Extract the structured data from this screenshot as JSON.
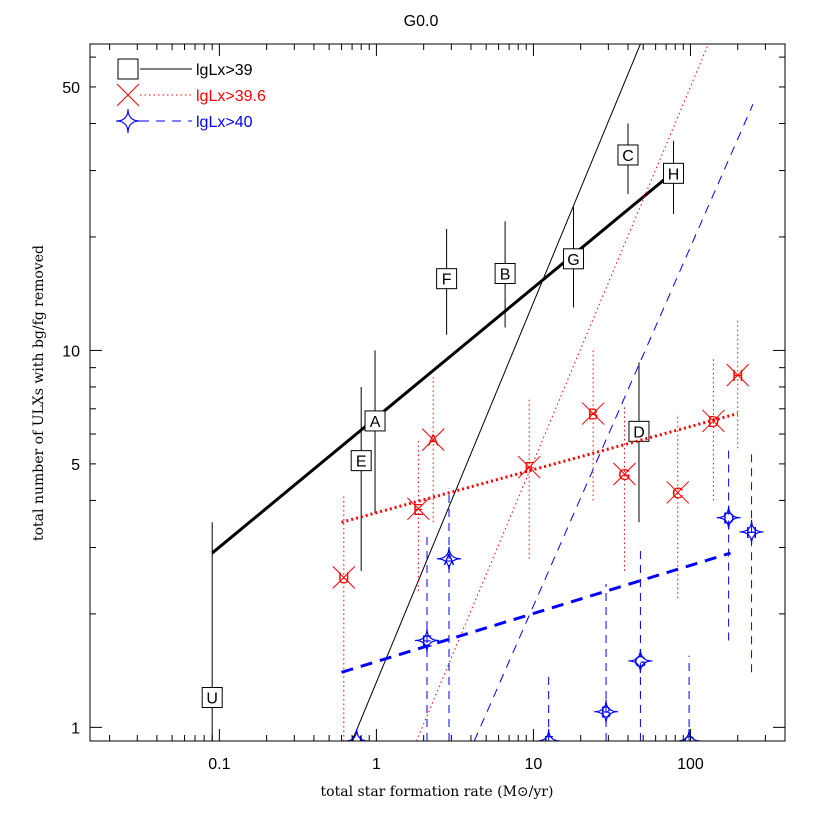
{
  "chart_data": {
    "type": "scatter",
    "title": "G0.0",
    "xlabel": "total star formation rate (M⊙/yr)",
    "ylabel": "total number of ULXs with bg/fg removed",
    "xscale": "log",
    "yscale": "log",
    "xlim": [
      0.015,
      400
    ],
    "ylim": [
      0.92,
      65
    ],
    "x_ticks": [
      {
        "value": 0.1,
        "label": "0.1"
      },
      {
        "value": 1,
        "label": "1"
      },
      {
        "value": 10,
        "label": "10"
      },
      {
        "value": 100,
        "label": "100"
      }
    ],
    "y_ticks": [
      {
        "value": 1,
        "label": "1"
      },
      {
        "value": 5,
        "label": "5"
      },
      {
        "value": 10,
        "label": "10"
      },
      {
        "value": 50,
        "label": "50"
      }
    ],
    "legend_position": "top-left",
    "series": [
      {
        "name": "lgLx>39",
        "color": "#000000",
        "marker": "square",
        "line_style": "solid",
        "fit": {
          "x": [
            0.09,
            80
          ],
          "y": [
            2.9,
            30
          ]
        },
        "steep_line": {
          "x": [
            0.7,
            48
          ],
          "y": [
            0.92,
            65
          ]
        },
        "points": [
          {
            "label": "U",
            "x": 0.09,
            "y": 1.2,
            "ylo": 0.92,
            "yhi": 3.5
          },
          {
            "label": "E",
            "x": 0.8,
            "y": 5.1,
            "ylo": 2.6,
            "yhi": 8.0
          },
          {
            "label": "A",
            "x": 0.98,
            "y": 6.5,
            "ylo": 3.7,
            "yhi": 10.0
          },
          {
            "label": "F",
            "x": 2.8,
            "y": 15.5,
            "ylo": 11.0,
            "yhi": 21.0
          },
          {
            "label": "B",
            "x": 6.6,
            "y": 16.0,
            "ylo": 11.5,
            "yhi": 22.0
          },
          {
            "label": "G",
            "x": 18,
            "y": 17.5,
            "ylo": 13.0,
            "yhi": 24.0
          },
          {
            "label": "C",
            "x": 40,
            "y": 33.0,
            "ylo": 26.0,
            "yhi": 40.0
          },
          {
            "label": "D",
            "x": 47,
            "y": 6.1,
            "ylo": 3.5,
            "yhi": 9.3
          },
          {
            "label": "H",
            "x": 78,
            "y": 29.5,
            "ylo": 23.0,
            "yhi": 36.0
          }
        ]
      },
      {
        "name": "lgLx>39.6",
        "color": "#ff0000",
        "marker": "x",
        "line_style": "dotted",
        "fit": {
          "x": [
            0.6,
            200
          ],
          "y": [
            3.5,
            6.8
          ]
        },
        "steep_line": {
          "x": [
            1.8,
            130
          ],
          "y": [
            0.92,
            65
          ]
        },
        "points": [
          {
            "label": "U",
            "x": 0.62,
            "y": 2.5,
            "ylo": 0.92,
            "yhi": 4.1
          },
          {
            "label": "E",
            "x": 1.85,
            "y": 3.8,
            "ylo": 2.3,
            "yhi": 5.8
          },
          {
            "label": "A",
            "x": 2.3,
            "y": 5.8,
            "ylo": 3.5,
            "yhi": 8.5
          },
          {
            "label": "F",
            "x": 9.4,
            "y": 4.9,
            "ylo": 2.8,
            "yhi": 7.5
          },
          {
            "label": "B",
            "x": 24,
            "y": 6.8,
            "ylo": 4.0,
            "yhi": 10.0
          },
          {
            "label": "G",
            "x": 38,
            "y": 4.7,
            "ylo": 2.6,
            "yhi": 7.2
          },
          {
            "label": "C",
            "x": 83,
            "y": 4.2,
            "ylo": 2.2,
            "yhi": 6.8
          },
          {
            "label": "D",
            "x": 140,
            "y": 6.5,
            "ylo": 4.0,
            "yhi": 9.6
          },
          {
            "label": "H",
            "x": 200,
            "y": 8.6,
            "ylo": 5.5,
            "yhi": 12.0
          }
        ]
      },
      {
        "name": "lgLx>40",
        "color": "#0000ff",
        "marker": "star4",
        "line_style": "dashed",
        "fit": {
          "x": [
            0.6,
            180
          ],
          "y": [
            1.4,
            2.9
          ]
        },
        "steep_line": {
          "x": [
            4.2,
            250
          ],
          "y": [
            0.92,
            45
          ]
        },
        "points": [
          {
            "label": "U",
            "x": 0.75,
            "y": 0.92,
            "ylo": 0.92,
            "yhi": 0.92
          },
          {
            "label": "E",
            "x": 2.1,
            "y": 1.7,
            "ylo": 0.92,
            "yhi": 3.3
          },
          {
            "label": "A",
            "x": 2.9,
            "y": 2.8,
            "ylo": 0.92,
            "yhi": 4.3
          },
          {
            "label": "F",
            "x": 12.5,
            "y": 0.92,
            "ylo": 0.92,
            "yhi": 1.4
          },
          {
            "label": "B",
            "x": 29,
            "y": 1.1,
            "ylo": 0.92,
            "yhi": 2.4
          },
          {
            "label": "G",
            "x": 48,
            "y": 1.5,
            "ylo": 0.92,
            "yhi": 3.0
          },
          {
            "label": "C",
            "x": 98,
            "y": 0.92,
            "ylo": 0.92,
            "yhi": 1.55
          },
          {
            "label": "D",
            "x": 175,
            "y": 3.6,
            "ylo": 1.7,
            "yhi": 5.6
          },
          {
            "label": "H",
            "x": 245,
            "y": 3.3,
            "ylo": 1.4,
            "yhi": 5.3
          }
        ]
      }
    ]
  }
}
